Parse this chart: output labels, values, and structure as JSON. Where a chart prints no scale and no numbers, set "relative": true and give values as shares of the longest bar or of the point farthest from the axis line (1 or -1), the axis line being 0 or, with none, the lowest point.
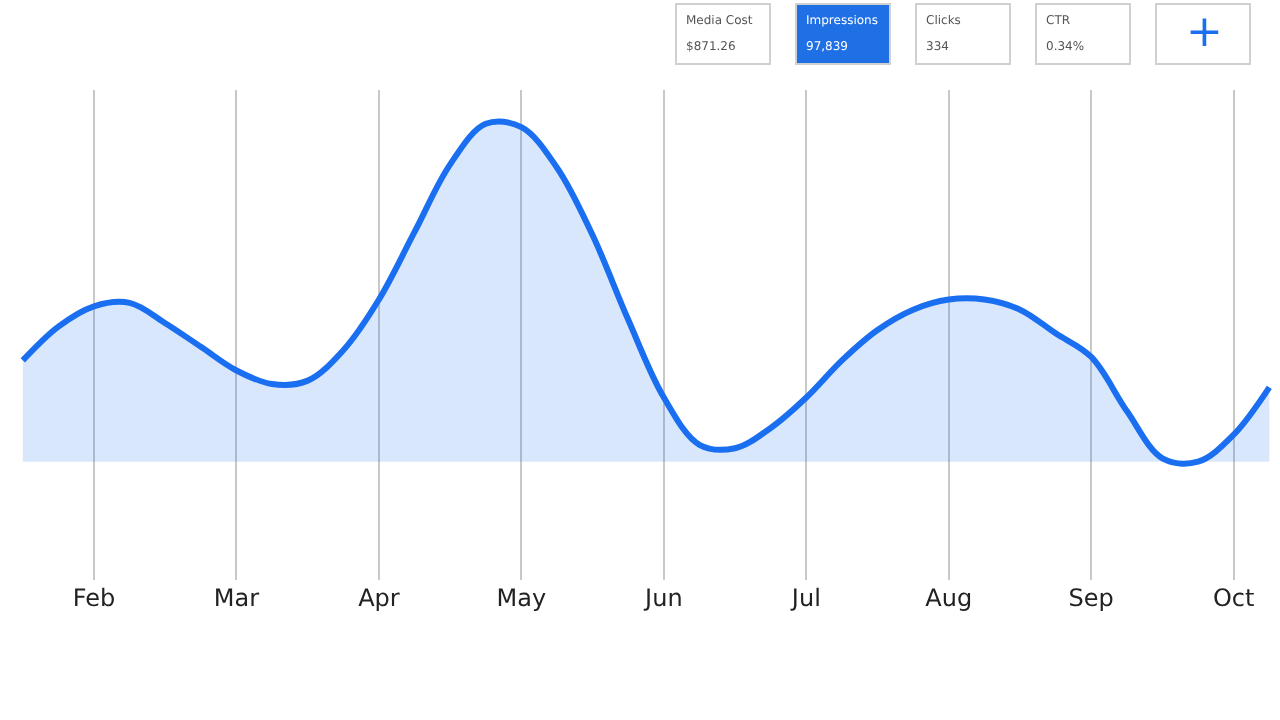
{
  "chart_data": {
    "type": "area",
    "relative": true,
    "categories": [
      null,
      null,
      "Feb",
      null,
      null,
      null,
      "Mar",
      null,
      null,
      null,
      "Apr",
      null,
      null,
      null,
      "May",
      null,
      null,
      null,
      "Jun",
      null,
      null,
      null,
      "Jul",
      null,
      null,
      null,
      "Aug",
      null,
      null,
      null,
      "Sep",
      null,
      null,
      null,
      "Oct",
      null
    ],
    "series": [
      {
        "color": "#1a6ef0",
        "values": [
          0.3,
          0.4,
          0.46,
          0.47,
          0.41,
          0.34,
          0.27,
          0.23,
          0.24,
          0.33,
          0.48,
          0.68,
          0.88,
          1,
          0.99,
          0.87,
          0.67,
          0.42,
          0.19,
          0.05,
          0.04,
          0.1,
          0.19,
          0.3,
          0.39,
          0.45,
          0.48,
          0.48,
          0.45,
          0.38,
          0.31,
          0.15,
          0.01,
          0,
          0.08,
          0.22
        ]
      }
    ],
    "grid": "x",
    "marker": "none",
    "line_style": "solid",
    "annotations": [
      "Media Cost",
      "$871.26",
      "Impressions",
      "97,839",
      "Clicks",
      "334",
      "CTR",
      "0.34%",
      "+"
    ]
  }
}
